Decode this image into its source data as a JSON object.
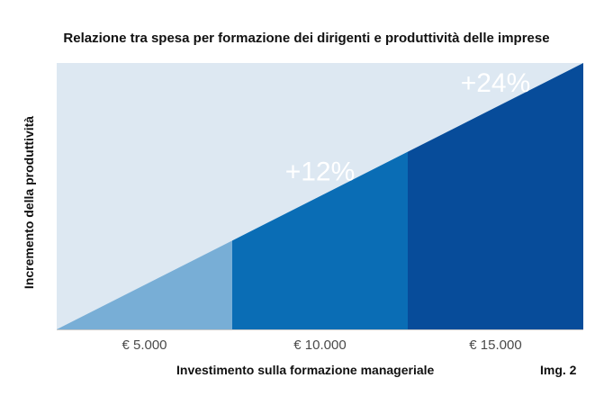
{
  "title": "Relazione tra spesa per formazione dei dirigenti e produttività delle imprese",
  "figure_label": "Img. 2",
  "chart_data": {
    "type": "area",
    "title": "Relazione tra spesa per formazione dei dirigenti e produttività delle imprese",
    "xlabel": "Investimento sulla formazione manageriale",
    "ylabel": "Incremento della produttività",
    "categories": [
      "€ 5.000",
      "€ 10.000",
      "€ 15.000"
    ],
    "values": [
      "",
      "+12%",
      "+24%"
    ],
    "grid": false,
    "legend": "none"
  },
  "colors": {
    "background_area": "#dde8f2",
    "band_1": "#78aed6",
    "band_2": "#0a6db5",
    "band_3": "#074c9a",
    "axis_line": "#c8c8c8",
    "text": "#111111",
    "tick_text": "#4a4a4a",
    "value_text": "#ffffff"
  }
}
